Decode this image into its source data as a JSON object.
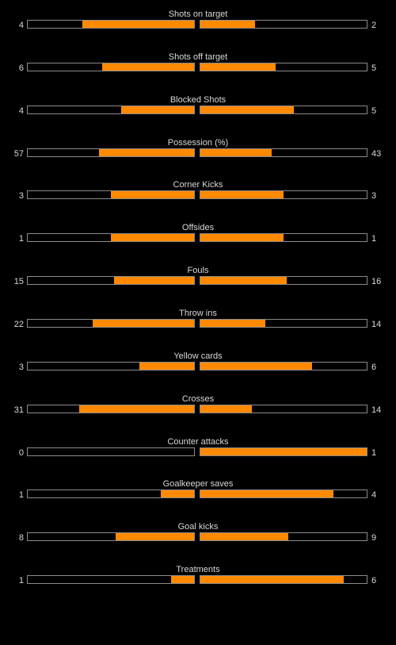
{
  "colors": {
    "bar_fill": "#ff8a00",
    "bar_border": "#8a8a8a",
    "background": "#000000",
    "text": "#d8d8d8"
  },
  "stats": [
    {
      "label": "Shots on target",
      "home": 4,
      "away": 2,
      "home_fraction": 0.67,
      "away_fraction": 0.33
    },
    {
      "label": "Shots off target",
      "home": 6,
      "away": 5,
      "home_fraction": 0.55,
      "away_fraction": 0.45
    },
    {
      "label": "Blocked Shots",
      "home": 4,
      "away": 5,
      "home_fraction": 0.44,
      "away_fraction": 0.56
    },
    {
      "label": "Possession (%)",
      "home": 57,
      "away": 43,
      "home_fraction": 0.57,
      "away_fraction": 0.43
    },
    {
      "label": "Corner Kicks",
      "home": 3,
      "away": 3,
      "home_fraction": 0.5,
      "away_fraction": 0.5
    },
    {
      "label": "Offsides",
      "home": 1,
      "away": 1,
      "home_fraction": 0.5,
      "away_fraction": 0.5
    },
    {
      "label": "Fouls",
      "home": 15,
      "away": 16,
      "home_fraction": 0.48,
      "away_fraction": 0.52
    },
    {
      "label": "Throw ins",
      "home": 22,
      "away": 14,
      "home_fraction": 0.61,
      "away_fraction": 0.39
    },
    {
      "label": "Yellow cards",
      "home": 3,
      "away": 6,
      "home_fraction": 0.33,
      "away_fraction": 0.67
    },
    {
      "label": "Crosses",
      "home": 31,
      "away": 14,
      "home_fraction": 0.69,
      "away_fraction": 0.31
    },
    {
      "label": "Counter attacks",
      "home": 0,
      "away": 1,
      "home_fraction": 0.0,
      "away_fraction": 1.0
    },
    {
      "label": "Goalkeeper saves",
      "home": 1,
      "away": 4,
      "home_fraction": 0.2,
      "away_fraction": 0.8
    },
    {
      "label": "Goal kicks",
      "home": 8,
      "away": 9,
      "home_fraction": 0.47,
      "away_fraction": 0.53
    },
    {
      "label": "Treatments",
      "home": 1,
      "away": 6,
      "home_fraction": 0.14,
      "away_fraction": 0.86
    }
  ]
}
